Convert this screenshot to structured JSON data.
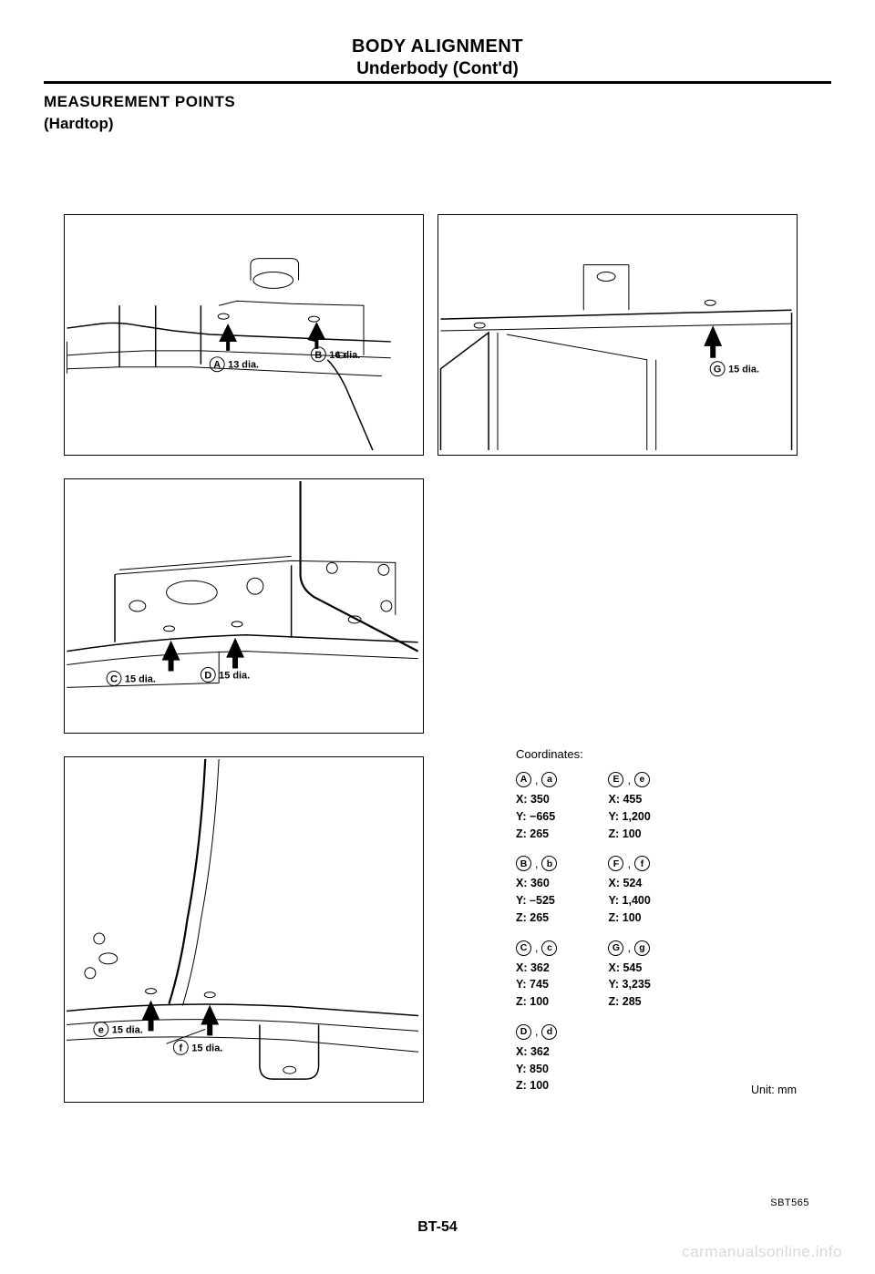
{
  "header": {
    "title": "BODY ALIGNMENT",
    "subtitle": "Underbody (Cont'd)"
  },
  "section": {
    "heading": "MEASUREMENT POINTS",
    "subheading": "(Hardtop)"
  },
  "diagrams": {
    "panel_a": {
      "labels": [
        {
          "circle": "A",
          "text": "13 dia."
        },
        {
          "circle": "B",
          "text": "16 dia."
        }
      ]
    },
    "panel_b": {
      "labels": [
        {
          "circle": "G",
          "text": "15 dia."
        }
      ]
    },
    "panel_c": {
      "labels": [
        {
          "circle": "C",
          "text": "15 dia."
        },
        {
          "circle": "D",
          "text": "15 dia."
        }
      ]
    },
    "panel_d": {
      "labels": [
        {
          "circle": "e",
          "text": "15 dia."
        },
        {
          "circle": "f",
          "text": "15 dia."
        }
      ]
    }
  },
  "coordinates": {
    "title": "Coordinates:",
    "unit": "Unit: mm",
    "left": [
      {
        "upper": "A",
        "lower": "a",
        "x": "350",
        "y": "−665",
        "z": "265"
      },
      {
        "upper": "B",
        "lower": "b",
        "x": "360",
        "y": "–525",
        "z": "265"
      },
      {
        "upper": "C",
        "lower": "c",
        "x": "362",
        "y": "745",
        "z": "100"
      },
      {
        "upper": "D",
        "lower": "d",
        "x": "362",
        "y": "850",
        "z": "100"
      }
    ],
    "right": [
      {
        "upper": "E",
        "lower": "e",
        "x": "455",
        "y": "1,200",
        "z": "100"
      },
      {
        "upper": "F",
        "lower": "f",
        "x": "524",
        "y": "1,400",
        "z": "100"
      },
      {
        "upper": "G",
        "lower": "g",
        "x": "545",
        "y": "3,235",
        "z": "285"
      }
    ]
  },
  "figure_code": "SBT565",
  "page_number": "BT-54",
  "watermark": "carmanualsonline.info"
}
